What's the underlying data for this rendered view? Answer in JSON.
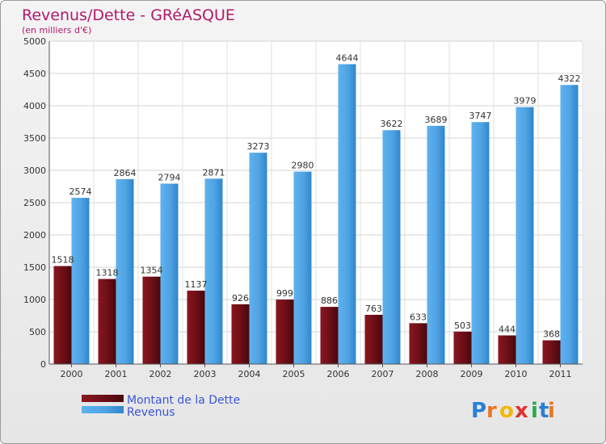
{
  "title": "Revenus/Dette - GRéASQUE",
  "subtitle": "(en milliers d'€)",
  "logo": {
    "text": "Proxiti",
    "letters": [
      "P",
      "r",
      "o",
      "x",
      "i",
      "t",
      "i"
    ]
  },
  "colors": {
    "debt": "#6b0e16",
    "revenue": "#4fa3e3",
    "title": "#b01a6a",
    "legend_text": "#3b57d8"
  },
  "chart_data": {
    "type": "bar",
    "title": "Revenus/Dette - GRéASQUE",
    "subtitle": "(en milliers d'€)",
    "categories": [
      "2000",
      "2001",
      "2002",
      "2003",
      "2004",
      "2005",
      "2006",
      "2007",
      "2008",
      "2009",
      "2010",
      "2011"
    ],
    "series": [
      {
        "name": "Montant de la Dette",
        "values": [
          1518,
          1318,
          1354,
          1137,
          926,
          999,
          886,
          763,
          633,
          503,
          444,
          368
        ]
      },
      {
        "name": "Revenus",
        "values": [
          2574,
          2864,
          2794,
          2871,
          3273,
          2980,
          4644,
          3622,
          3689,
          3747,
          3979,
          4322
        ]
      }
    ],
    "ylim": [
      0,
      5000
    ],
    "yticks": [
      0,
      500,
      1000,
      1500,
      2000,
      2500,
      3000,
      3500,
      4000,
      4500,
      5000
    ],
    "grid": true,
    "legend": "bottom-left"
  }
}
